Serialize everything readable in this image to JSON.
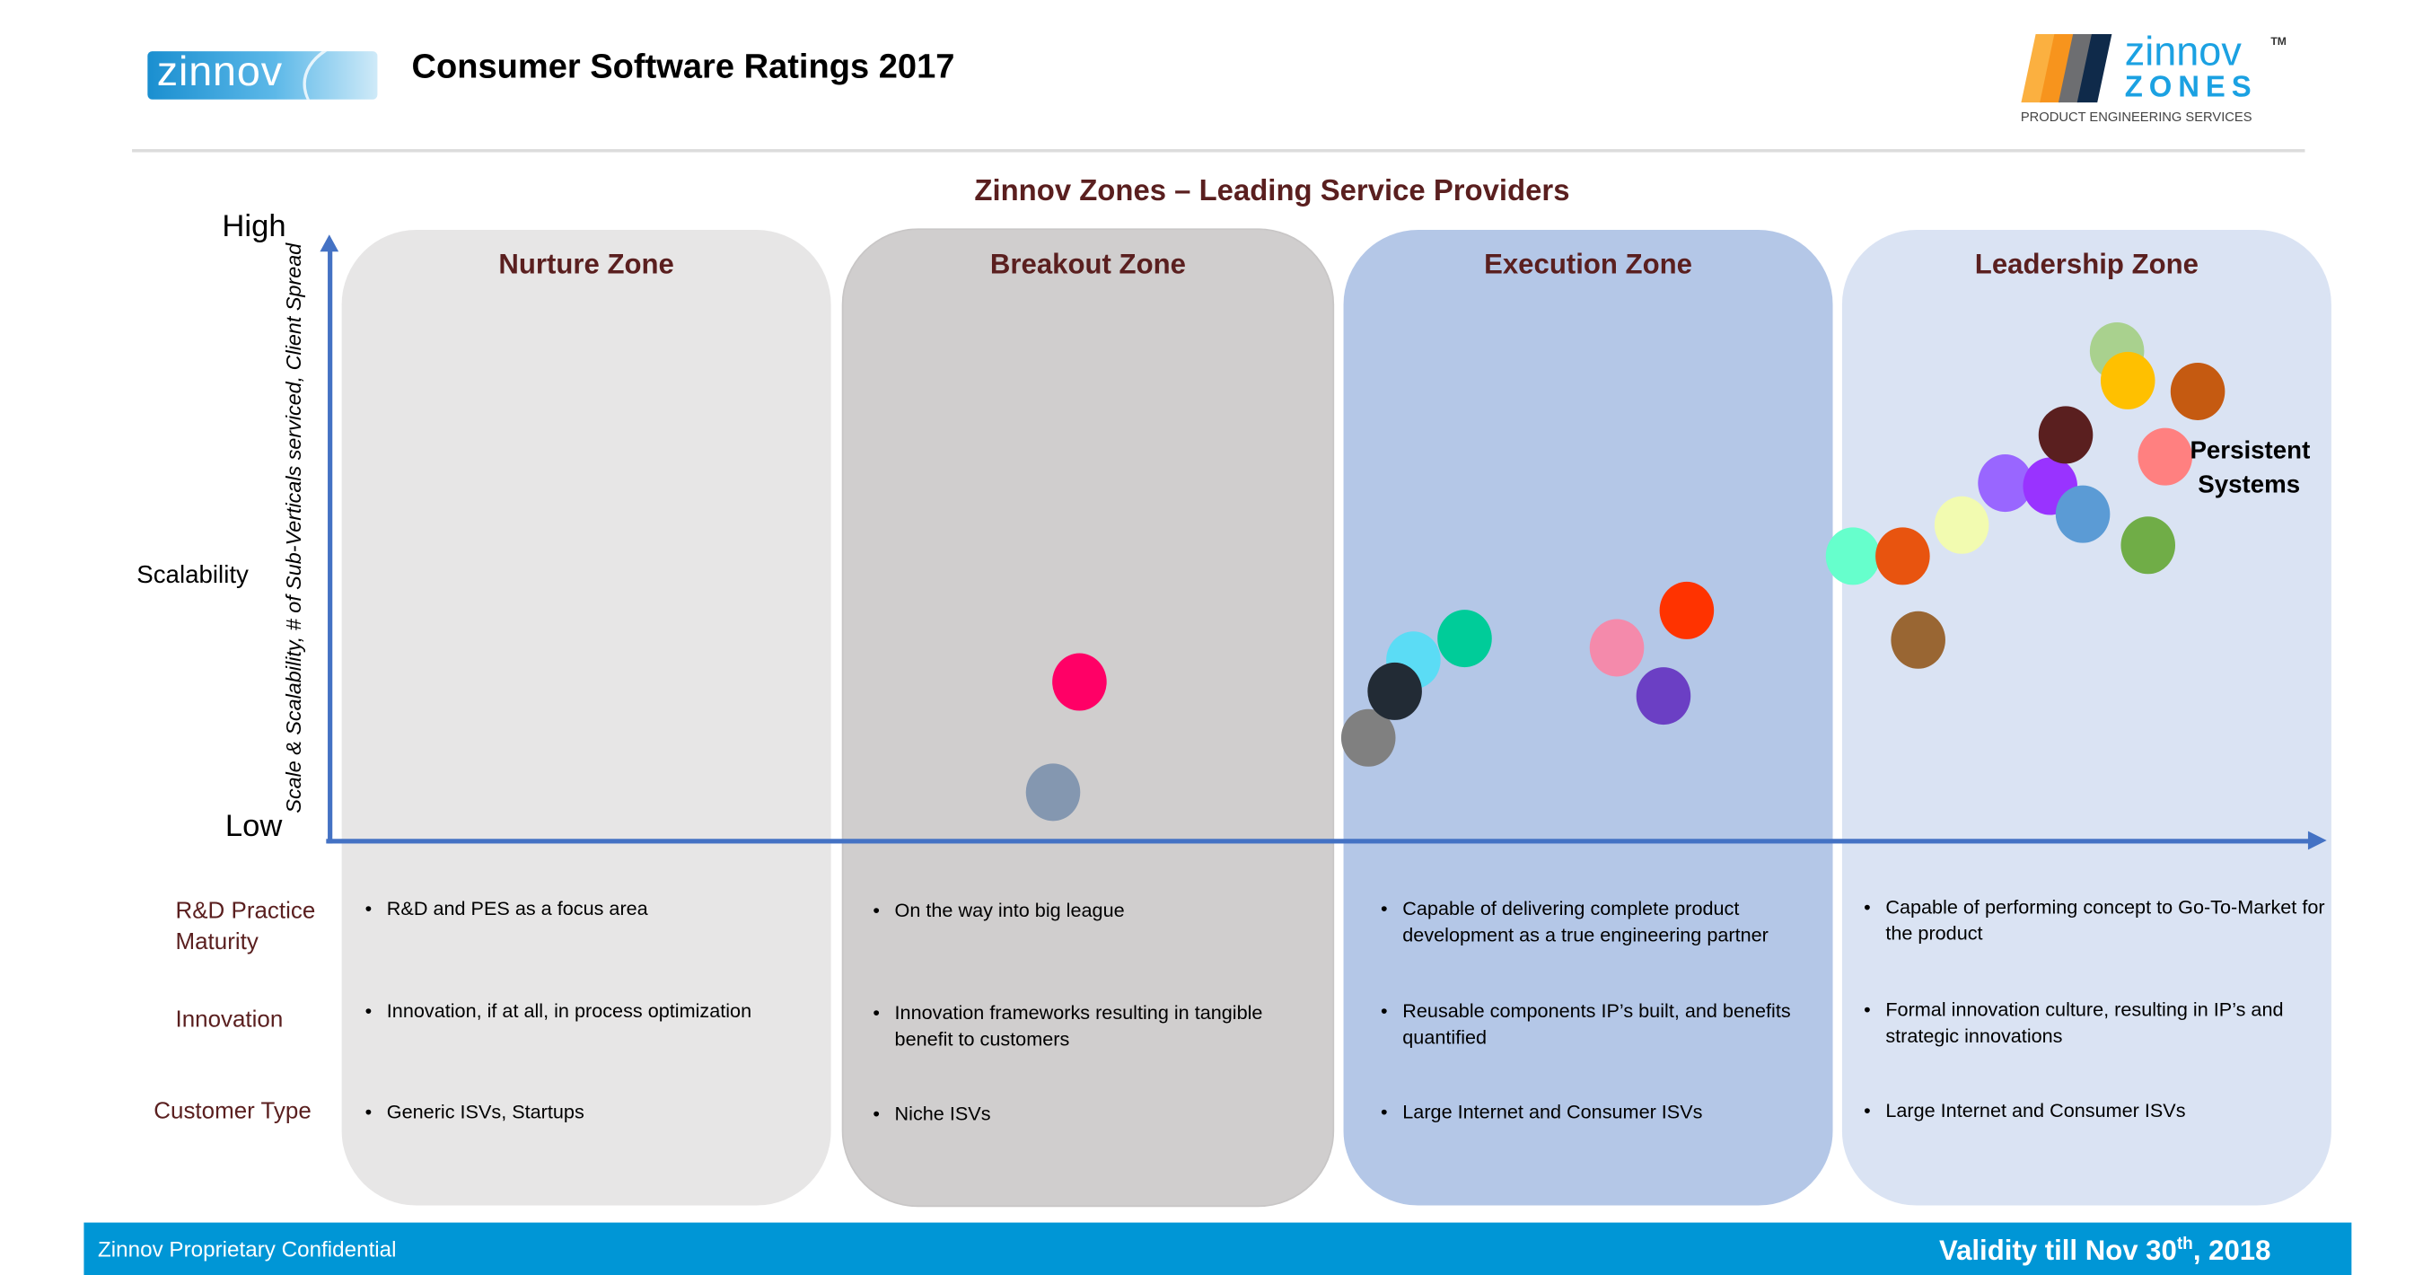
{
  "header": {
    "logo_left": "zinnov",
    "title": "Consumer Software Ratings 2017",
    "logo_right": {
      "wordmark": "zinnov",
      "tm": "TM",
      "zones": "ZONES",
      "tagline": "PRODUCT ENGINEERING SERVICES"
    }
  },
  "subtitle": "Zinnov Zones – Leading Service Providers",
  "axes": {
    "y_high": "High",
    "y_low": "Low",
    "y_name": "Scalability",
    "y_label": "Scale & Scalability, # of Sub-Verticals serviced, Client Spread",
    "color": "#4472c4"
  },
  "zones": [
    {
      "name": "Nurture Zone",
      "color": "#e7e6e6",
      "rd": "R&D and PES as a focus area",
      "innovation": "Innovation, if at all, in process optimization",
      "customer": "Generic ISVs, Startups"
    },
    {
      "name": "Breakout Zone",
      "color": "#d0cece",
      "rd": "On the way into big league",
      "innovation": "Innovation frameworks resulting in tangible benefit to customers",
      "customer": "Niche ISVs"
    },
    {
      "name": "Execution Zone",
      "color": "#b4c7e7",
      "rd": "Capable of delivering complete product development as a true engineering partner",
      "innovation": "Reusable components IP’s built, and benefits quantified",
      "customer": "Large Internet and Consumer ISVs"
    },
    {
      "name": "Leadership Zone",
      "color": "#dae3f3",
      "rd": "Capable of performing concept to Go-To-Market for the product",
      "innovation": "Formal innovation culture, resulting in IP’s and strategic innovations",
      "customer": "Large Internet and Consumer ISVs"
    }
  ],
  "row_labels": {
    "rd": "R&D Practice Maturity",
    "innovation": "Innovation",
    "customer": "Customer Type"
  },
  "bubbles": [
    {
      "zone": "Breakout Zone",
      "color": "#ff0066"
    },
    {
      "zone": "Breakout Zone",
      "color": "#8497b0"
    },
    {
      "zone": "Execution Zone",
      "color": "#808080"
    },
    {
      "zone": "Execution Zone",
      "color": "#5bdcf5"
    },
    {
      "zone": "Execution Zone",
      "color": "#222b35"
    },
    {
      "zone": "Execution Zone",
      "color": "#00cc99"
    },
    {
      "zone": "Execution Zone",
      "color": "#f48aab"
    },
    {
      "zone": "Execution Zone",
      "color": "#ff3300"
    },
    {
      "zone": "Execution Zone",
      "color": "#6b3fc4"
    },
    {
      "zone": "Leadership Zone",
      "color": "#66ffcc"
    },
    {
      "zone": "Leadership Zone",
      "color": "#e8540f"
    },
    {
      "zone": "Leadership Zone",
      "color": "#996633"
    },
    {
      "zone": "Leadership Zone",
      "color": "#f2fbb0"
    },
    {
      "zone": "Leadership Zone",
      "color": "#9966ff"
    },
    {
      "zone": "Leadership Zone",
      "color": "#9933ff"
    },
    {
      "zone": "Leadership Zone",
      "color": "#5b9bd5"
    },
    {
      "zone": "Leadership Zone",
      "color": "#5a1f1f"
    },
    {
      "zone": "Leadership Zone",
      "color": "#70ad47"
    },
    {
      "zone": "Leadership Zone",
      "color": "#ff8080",
      "label": "Persistent Systems"
    },
    {
      "zone": "Leadership Zone",
      "color": "#a9d18e"
    },
    {
      "zone": "Leadership Zone",
      "color": "#ffc000"
    },
    {
      "zone": "Leadership Zone",
      "color": "#c55a11"
    }
  ],
  "persistent_label": "Persistent Systems",
  "footer": {
    "left": "Zinnov Proprietary Confidential",
    "right_prefix": "Validity till Nov 30",
    "right_sup": "th",
    "right_suffix": ", 2018",
    "color": "#0096d6"
  }
}
